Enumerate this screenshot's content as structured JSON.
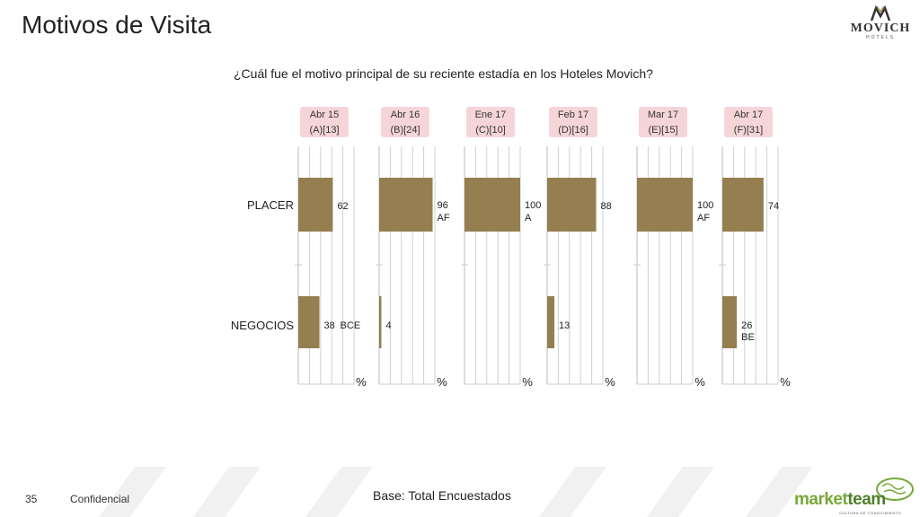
{
  "title": "Motivos de Visita",
  "logo": {
    "name": "MOVICH",
    "sub": "HOTELS"
  },
  "question": "¿Cuál fue el motivo principal de su reciente estadía en los Hoteles Movich?",
  "footer": {
    "page": "35",
    "confidential": "Confidencial",
    "base": "Base: Total Encuestados"
  },
  "brand": {
    "part1": "market",
    "part2": "team",
    "tagline": "CULTURA DE CONOCIMIENTO"
  },
  "colors": {
    "bar": "#957f51",
    "header_bg": "#f6d5d9",
    "header_text": "#333333",
    "grid": "#d0d0d0",
    "accent": "#76a83a"
  },
  "chart_data": {
    "type": "bar",
    "orientation": "horizontal",
    "categories": [
      "PLACER",
      "NEGOCIOS"
    ],
    "unit": "%",
    "xlim": [
      0,
      100
    ],
    "panels": [
      {
        "period": "Abr 15",
        "code": "(A)[13]",
        "values": [
          62,
          38
        ],
        "sig": [
          "",
          "BCE"
        ]
      },
      {
        "period": "Abr 16",
        "code": "(B)[24]",
        "values": [
          96,
          4
        ],
        "sig": [
          "AF",
          ""
        ]
      },
      {
        "period": "Ene 17",
        "code": "(C)[10]",
        "values": [
          100,
          null
        ],
        "sig": [
          "A",
          ""
        ]
      },
      {
        "period": "Feb 17",
        "code": "(D)[16]",
        "values": [
          88,
          13
        ],
        "sig": [
          "",
          ""
        ]
      },
      {
        "period": "Mar 17",
        "code": "(E)[15]",
        "values": [
          100,
          null
        ],
        "sig": [
          "AF",
          ""
        ]
      },
      {
        "period": "Abr 17",
        "code": "(F)[31]",
        "values": [
          74,
          26
        ],
        "sig": [
          "",
          "BE"
        ]
      }
    ]
  }
}
